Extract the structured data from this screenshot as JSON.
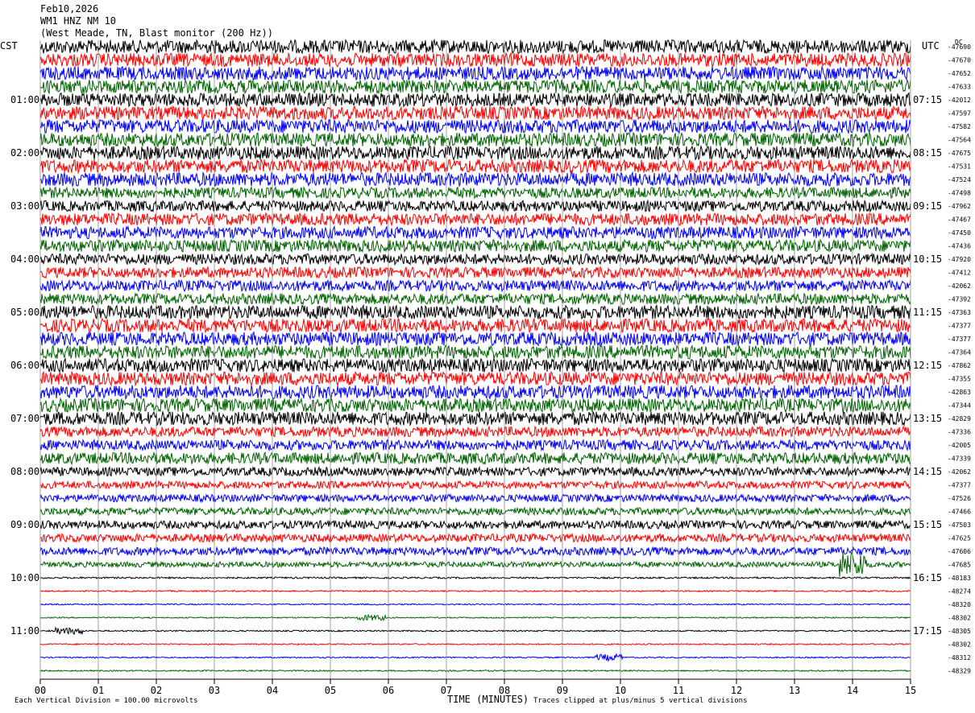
{
  "header": {
    "date": "Feb10,2026",
    "station": "WM1 HNZ NM 10",
    "location": "(West Meade, TN, Blast monitor (200 Hz))"
  },
  "timezones": {
    "left": "CST",
    "right": "UTC",
    "dc_label": "DC"
  },
  "footer": {
    "scale_note": "Each Vertical Division =  100.00 microvolts",
    "xlabel": "TIME (MINUTES)",
    "clip_note": "Traces clipped at plus/minus 5 vertical divisions"
  },
  "chart_data": {
    "type": "line",
    "title": "WM1 HNZ NM 10",
    "xlabel": "TIME (MINUTES)",
    "xlim": [
      0,
      15
    ],
    "x_ticks": [
      "00",
      "01",
      "02",
      "03",
      "04",
      "05",
      "06",
      "07",
      "08",
      "09",
      "10",
      "11",
      "12",
      "13",
      "14",
      "15"
    ],
    "grid": "vertical lines every minute",
    "trace_colors": [
      "#000000",
      "#ff0000",
      "#0000ff",
      "#006400"
    ],
    "trace_count": 48,
    "row_amplitude": [
      2,
      2,
      2,
      2,
      2,
      2,
      2,
      2,
      2,
      2,
      2,
      1.6,
      1.6,
      1.8,
      1.8,
      1.8,
      1.6,
      1.6,
      1.6,
      1.6,
      2,
      2,
      2,
      2,
      2,
      2,
      2,
      2,
      2,
      1.5,
      1.5,
      1.7,
      1.3,
      1.1,
      1.1,
      1.1,
      1.2,
      1.2,
      1.2,
      0.8,
      0.25,
      0.2,
      0.2,
      0.18,
      0.2,
      0.2,
      0.2,
      0.2
    ],
    "left_hour_labels": [
      "01:00",
      "02:00",
      "03:00",
      "04:00",
      "05:00",
      "06:00",
      "07:00",
      "08:00",
      "09:00",
      "10:00",
      "11:00"
    ],
    "right_hour_labels": [
      "07:15",
      "08:15",
      "09:15",
      "10:15",
      "11:15",
      "12:15",
      "13:15",
      "14:15",
      "15:15",
      "16:15",
      "17:15"
    ],
    "dc_offsets": [
      "-47690",
      "-47670",
      "-47652",
      "-47633",
      "-42012",
      "-47597",
      "-47582",
      "-47564",
      "-47675",
      "-47531",
      "-47524",
      "-47498",
      "-47962",
      "-47467",
      "-47450",
      "-47436",
      "-47920",
      "-47412",
      "-42062",
      "-47392",
      "-47363",
      "-47377",
      "-47377",
      "-47364",
      "-47862",
      "-47355",
      "-42863",
      "-47344",
      "-42829",
      "-47336",
      "-42005",
      "-47339",
      "-42062",
      "-47377",
      "-47526",
      "-47466",
      "-47503",
      "-47625",
      "-47606",
      "-47685",
      "-48183",
      "-48274",
      "-48320",
      "-48302",
      "-48305",
      "-48302",
      "-48312",
      "-48329"
    ],
    "events": [
      {
        "trace_hour": "09:00",
        "minute": 14.0,
        "label": "event burst (green trace)"
      },
      {
        "trace_hour": "10:00",
        "minute": 5.7,
        "label": "spike (green trace)"
      },
      {
        "trace_hour": "11:00",
        "minute": 0.5,
        "label": "spike (black trace)"
      },
      {
        "trace_hour": "11:00",
        "minute": 9.8,
        "label": "burst (blue trace)"
      }
    ]
  }
}
